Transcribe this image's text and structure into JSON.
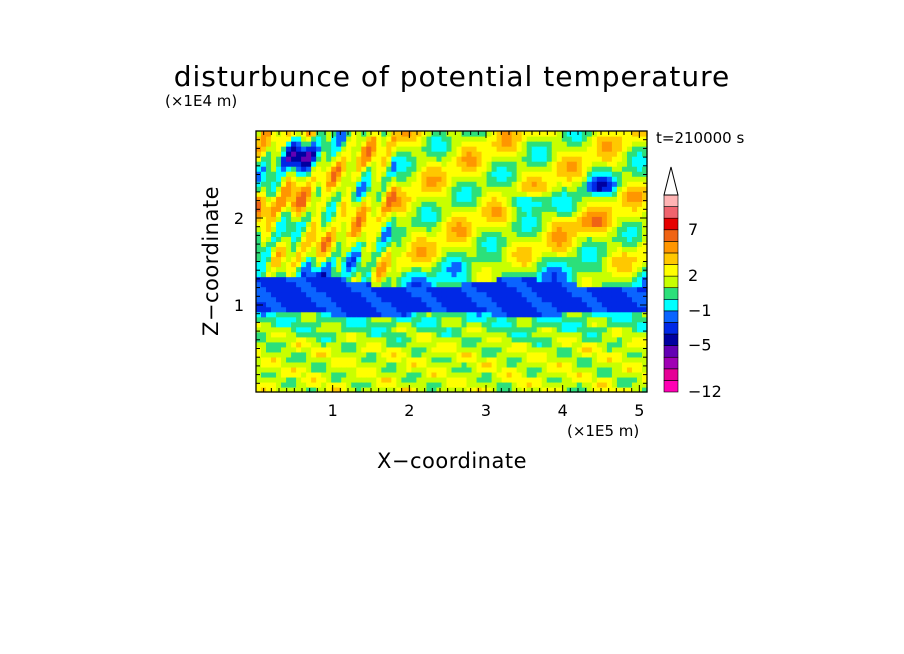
{
  "chart_data": {
    "type": "heatmap",
    "title": "disturbunce of potential temperature",
    "xlabel": "X−coordinate",
    "ylabel": "Z−coordinate",
    "x_unit": "(×1E5 m)",
    "y_unit": "(×1E4 m)",
    "time_label": "t=210000 s",
    "xlim": [
      0,
      5.1
    ],
    "ylim": [
      0,
      3.0
    ],
    "x_ticks": [
      {
        "value": 1,
        "label": "1"
      },
      {
        "value": 2,
        "label": "2"
      },
      {
        "value": 3,
        "label": "3"
      },
      {
        "value": 4,
        "label": "4"
      },
      {
        "value": 5,
        "label": "5"
      }
    ],
    "y_ticks": [
      {
        "value": 1,
        "label": "1"
      },
      {
        "value": 2,
        "label": "2"
      }
    ],
    "colorbar": {
      "levels_bottom_to_top": [
        {
          "color": "#ff00b4"
        },
        {
          "color": "#e60096"
        },
        {
          "color": "#a000b4"
        },
        {
          "color": "#6400b4"
        },
        {
          "color": "#0000a0"
        },
        {
          "color": "#0028e6"
        },
        {
          "color": "#0a64ff"
        },
        {
          "color": "#00ffff"
        },
        {
          "color": "#2ce07a"
        },
        {
          "color": "#c8ff00"
        },
        {
          "color": "#ffff00"
        },
        {
          "color": "#ffc800"
        },
        {
          "color": "#ff9600"
        },
        {
          "color": "#f06414"
        },
        {
          "color": "#e60000"
        },
        {
          "color": "#f0646e"
        },
        {
          "color": "#ffb4b4"
        }
      ],
      "labels": [
        {
          "value": -12,
          "text": "−12"
        },
        {
          "value": -5,
          "text": "−5"
        },
        {
          "value": -1,
          "text": "−1"
        },
        {
          "value": 2,
          "text": "2"
        },
        {
          "value": 7,
          "text": "7"
        }
      ],
      "extend": "max"
    }
  }
}
